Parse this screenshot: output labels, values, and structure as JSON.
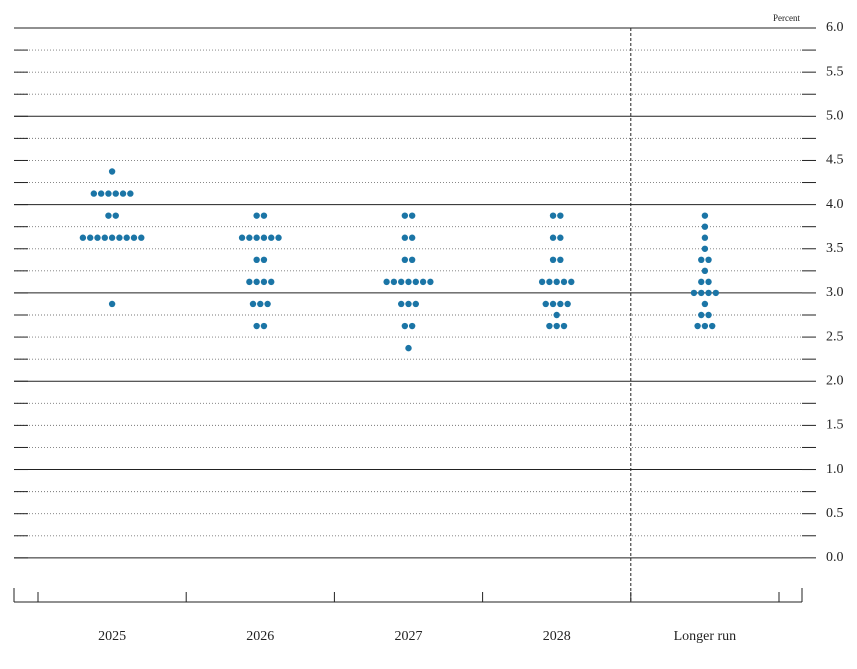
{
  "chart_data": {
    "type": "dot",
    "y_axis_label": "Percent",
    "categories": [
      "2025",
      "2026",
      "2027",
      "2028",
      "Longer run"
    ],
    "values": [
      [
        4.375,
        4.125,
        4.125,
        4.125,
        4.125,
        4.125,
        4.125,
        3.875,
        3.875,
        3.625,
        3.625,
        3.625,
        3.625,
        3.625,
        3.625,
        3.625,
        3.625,
        3.625,
        2.875
      ],
      [
        3.875,
        3.875,
        3.625,
        3.625,
        3.625,
        3.625,
        3.625,
        3.625,
        3.375,
        3.375,
        3.125,
        3.125,
        3.125,
        3.125,
        2.875,
        2.875,
        2.875,
        2.625,
        2.625
      ],
      [
        3.875,
        3.875,
        3.625,
        3.625,
        3.375,
        3.375,
        3.125,
        3.125,
        3.125,
        3.125,
        3.125,
        3.125,
        3.125,
        2.875,
        2.875,
        2.875,
        2.625,
        2.625,
        2.375
      ],
      [
        3.875,
        3.875,
        3.625,
        3.625,
        3.375,
        3.375,
        3.125,
        3.125,
        3.125,
        3.125,
        3.125,
        2.875,
        2.875,
        2.875,
        2.875,
        2.75,
        2.625,
        2.625,
        2.625
      ],
      [
        3.875,
        3.75,
        3.625,
        3.5,
        3.375,
        3.375,
        3.25,
        3.125,
        3.125,
        3.0,
        3.0,
        3.0,
        3.0,
        2.875,
        2.75,
        2.75,
        2.625,
        2.625,
        2.625
      ]
    ],
    "color": "#1b75a6",
    "ylim": [
      -0.5,
      6
    ],
    "yticks": [
      {
        "value": 0,
        "label": "0.0"
      },
      0.5,
      {
        "value": 1,
        "label": "1.0"
      },
      1.5,
      {
        "value": 2,
        "label": "2.0"
      },
      2.5,
      {
        "value": 3,
        "label": "3.0"
      },
      3.5,
      {
        "value": 4,
        "label": "4.0"
      },
      4.5,
      {
        "value": 5,
        "label": "5.0"
      },
      5.5,
      {
        "value": 6,
        "label": "6.0"
      }
    ],
    "grid": true,
    "separator_before_last": true
  }
}
